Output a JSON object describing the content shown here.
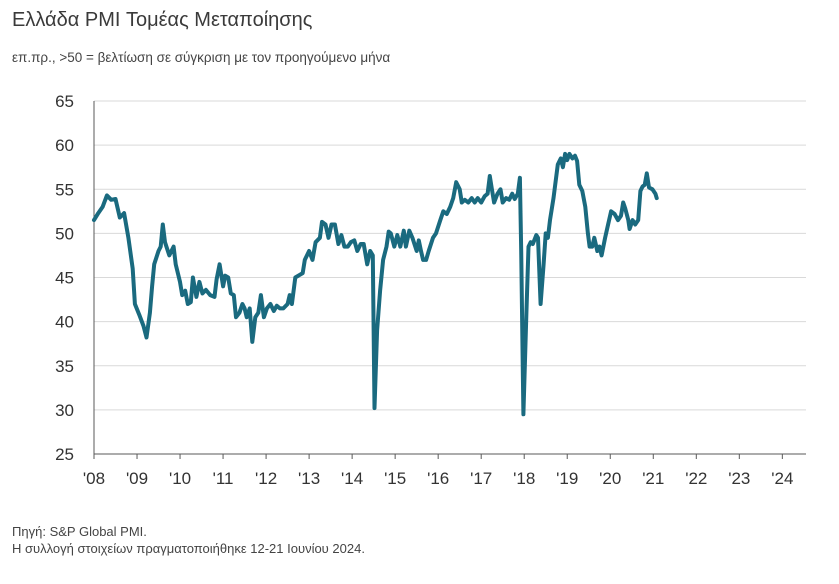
{
  "title": "Ελλάδα PMI Τομέας Μεταποίησης",
  "subtitle": "επ.πρ., >50 = βελτίωση σε σύγκριση με τον προηγούμενο μήνα",
  "source_line1": "Πηγή: S&P Global PMI.",
  "source_line2": "Η συλλογή στοιχείων πραγματοποιήθηκε 12-21 Ιουνίου 2024.",
  "colors": {
    "line": "#1a6a7f",
    "grid": "#d9d9d9",
    "axis": "#595959"
  },
  "chart_data": {
    "type": "line",
    "title": "Ελλάδα PMI Τομέας Μεταποίησης",
    "xlabel": "",
    "ylabel": "",
    "ylim": [
      25,
      65
    ],
    "y_ticks": [
      65,
      60,
      55,
      50,
      45,
      40,
      35,
      30,
      25
    ],
    "x_ticks": [
      "'08",
      "'09",
      "'10",
      "'11",
      "'12",
      "'13",
      "'14",
      "'15",
      "'16",
      "'17",
      "'18",
      "'19",
      "'20",
      "'21",
      "'22",
      "'23",
      "'24"
    ],
    "grid": true,
    "legend": "none",
    "series": [
      {
        "name": "",
        "points": [
          [
            2008.0,
            51.5
          ],
          [
            2008.1,
            52.3
          ],
          [
            2008.2,
            53.0
          ],
          [
            2008.3,
            54.3
          ],
          [
            2008.4,
            53.8
          ],
          [
            2008.5,
            53.9
          ],
          [
            2008.6,
            51.8
          ],
          [
            2008.7,
            52.3
          ],
          [
            2008.8,
            49.5
          ],
          [
            2008.9,
            46.0
          ],
          [
            2008.95,
            42.0
          ],
          [
            2009.05,
            40.8
          ],
          [
            2009.15,
            39.5
          ],
          [
            2009.22,
            38.2
          ],
          [
            2009.3,
            41.0
          ],
          [
            2009.35,
            44.0
          ],
          [
            2009.4,
            46.5
          ],
          [
            2009.5,
            48.0
          ],
          [
            2009.55,
            48.5
          ],
          [
            2009.6,
            51.0
          ],
          [
            2009.65,
            49.0
          ],
          [
            2009.75,
            47.5
          ],
          [
            2009.85,
            48.5
          ],
          [
            2009.9,
            46.5
          ],
          [
            2010.0,
            44.5
          ],
          [
            2010.05,
            43.0
          ],
          [
            2010.12,
            43.5
          ],
          [
            2010.18,
            42.0
          ],
          [
            2010.25,
            42.2
          ],
          [
            2010.3,
            45.0
          ],
          [
            2010.38,
            42.8
          ],
          [
            2010.45,
            44.5
          ],
          [
            2010.52,
            43.2
          ],
          [
            2010.6,
            43.6
          ],
          [
            2010.7,
            43.0
          ],
          [
            2010.8,
            42.8
          ],
          [
            2010.85,
            44.8
          ],
          [
            2010.92,
            46.5
          ],
          [
            2011.0,
            44.0
          ],
          [
            2011.05,
            45.2
          ],
          [
            2011.12,
            45.0
          ],
          [
            2011.18,
            43.2
          ],
          [
            2011.25,
            43.0
          ],
          [
            2011.3,
            40.5
          ],
          [
            2011.38,
            41.0
          ],
          [
            2011.45,
            42.0
          ],
          [
            2011.5,
            41.5
          ],
          [
            2011.55,
            40.5
          ],
          [
            2011.62,
            41.5
          ],
          [
            2011.68,
            37.7
          ],
          [
            2011.75,
            40.5
          ],
          [
            2011.82,
            41.0
          ],
          [
            2011.88,
            43.0
          ],
          [
            2011.95,
            40.5
          ],
          [
            2012.02,
            41.5
          ],
          [
            2012.1,
            42.0
          ],
          [
            2012.18,
            41.2
          ],
          [
            2012.25,
            41.8
          ],
          [
            2012.32,
            41.5
          ],
          [
            2012.4,
            41.5
          ],
          [
            2012.5,
            42.0
          ],
          [
            2012.55,
            43.0
          ],
          [
            2012.6,
            42.0
          ],
          [
            2012.68,
            45.0
          ],
          [
            2012.78,
            45.3
          ],
          [
            2012.85,
            45.5
          ],
          [
            2012.9,
            47.0
          ],
          [
            2013.0,
            48.0
          ],
          [
            2013.08,
            47.0
          ],
          [
            2013.15,
            49.0
          ],
          [
            2013.25,
            49.5
          ],
          [
            2013.3,
            51.3
          ],
          [
            2013.38,
            51.0
          ],
          [
            2013.45,
            49.5
          ],
          [
            2013.52,
            51.0
          ],
          [
            2013.6,
            51.0
          ],
          [
            2013.68,
            48.8
          ],
          [
            2013.75,
            49.8
          ],
          [
            2013.82,
            48.5
          ],
          [
            2013.9,
            48.5
          ],
          [
            2013.97,
            49.0
          ],
          [
            2014.05,
            49.2
          ],
          [
            2014.12,
            48.0
          ],
          [
            2014.2,
            48.8
          ],
          [
            2014.27,
            48.8
          ],
          [
            2014.35,
            46.5
          ],
          [
            2014.42,
            48.0
          ],
          [
            2014.48,
            47.5
          ],
          [
            2014.52,
            30.2
          ],
          [
            2014.58,
            39.0
          ],
          [
            2014.65,
            43.5
          ],
          [
            2014.72,
            47.0
          ],
          [
            2014.8,
            48.5
          ],
          [
            2014.85,
            50.2
          ],
          [
            2014.9,
            50.0
          ],
          [
            2014.98,
            48.5
          ],
          [
            2015.05,
            49.8
          ],
          [
            2015.12,
            48.5
          ],
          [
            2015.2,
            50.3
          ],
          [
            2015.25,
            48.5
          ],
          [
            2015.33,
            50.3
          ],
          [
            2015.4,
            49.5
          ],
          [
            2015.5,
            48.0
          ],
          [
            2015.55,
            49.2
          ],
          [
            2015.6,
            48.0
          ],
          [
            2015.65,
            47.0
          ],
          [
            2015.72,
            47.0
          ],
          [
            2015.78,
            48.0
          ],
          [
            2015.88,
            49.5
          ],
          [
            2015.95,
            50.0
          ],
          [
            2016.05,
            51.5
          ],
          [
            2016.12,
            52.5
          ],
          [
            2016.2,
            52.2
          ],
          [
            2016.28,
            53.0
          ],
          [
            2016.35,
            54.0
          ],
          [
            2016.42,
            55.8
          ],
          [
            2016.5,
            55.0
          ],
          [
            2016.55,
            53.5
          ],
          [
            2016.62,
            53.8
          ],
          [
            2016.7,
            53.5
          ],
          [
            2016.78,
            54.0
          ],
          [
            2016.85,
            53.5
          ],
          [
            2016.92,
            54.0
          ],
          [
            2017.0,
            53.5
          ],
          [
            2017.08,
            54.2
          ],
          [
            2017.15,
            54.5
          ],
          [
            2017.2,
            56.5
          ],
          [
            2017.25,
            55.0
          ],
          [
            2017.3,
            53.5
          ],
          [
            2017.38,
            54.5
          ],
          [
            2017.45,
            55.0
          ],
          [
            2017.5,
            53.5
          ],
          [
            2017.58,
            54.0
          ],
          [
            2017.65,
            53.8
          ],
          [
            2017.72,
            54.5
          ],
          [
            2017.78,
            53.9
          ],
          [
            2017.85,
            54.5
          ],
          [
            2017.9,
            56.3
          ],
          [
            2017.93,
            48.0
          ],
          [
            2017.98,
            29.5
          ],
          [
            2018.05,
            41.0
          ],
          [
            2018.1,
            48.5
          ],
          [
            2018.15,
            49.0
          ],
          [
            2018.2,
            48.8
          ],
          [
            2018.28,
            49.8
          ],
          [
            2018.32,
            49.5
          ],
          [
            2018.38,
            42.0
          ],
          [
            2018.45,
            46.5
          ],
          [
            2018.5,
            50.0
          ],
          [
            2018.55,
            49.5
          ],
          [
            2018.6,
            51.5
          ],
          [
            2018.68,
            54.0
          ],
          [
            2018.72,
            55.5
          ],
          [
            2018.78,
            57.8
          ],
          [
            2018.85,
            58.5
          ],
          [
            2018.9,
            57.5
          ],
          [
            2018.95,
            59.0
          ],
          [
            2019.0,
            58.3
          ],
          [
            2019.05,
            59.0
          ],
          [
            2019.12,
            58.5
          ],
          [
            2019.18,
            58.8
          ],
          [
            2019.23,
            58.2
          ],
          [
            2019.28,
            55.5
          ],
          [
            2019.35,
            54.8
          ],
          [
            2019.42,
            53.0
          ],
          [
            2019.48,
            50.0
          ],
          [
            2019.52,
            48.5
          ],
          [
            2019.58,
            48.5
          ],
          [
            2019.63,
            49.5
          ],
          [
            2019.7,
            48.0
          ],
          [
            2019.75,
            48.5
          ],
          [
            2019.8,
            47.5
          ],
          [
            2019.88,
            49.5
          ],
          [
            2019.95,
            51.0
          ],
          [
            2020.02,
            52.5
          ],
          [
            2020.1,
            52.2
          ],
          [
            2020.18,
            51.5
          ],
          [
            2020.25,
            52.0
          ],
          [
            2020.3,
            53.5
          ],
          [
            2020.35,
            52.8
          ],
          [
            2020.42,
            51.5
          ],
          [
            2020.45,
            50.5
          ],
          [
            2020.52,
            51.5
          ],
          [
            2020.58,
            51.0
          ],
          [
            2020.65,
            51.5
          ],
          [
            2020.7,
            54.8
          ],
          [
            2020.75,
            55.3
          ],
          [
            2020.8,
            55.5
          ],
          [
            2020.85,
            56.8
          ],
          [
            2020.9,
            55.2
          ],
          [
            2020.98,
            55.0
          ],
          [
            2021.05,
            54.5
          ],
          [
            2021.08,
            54.0
          ]
        ]
      }
    ]
  }
}
